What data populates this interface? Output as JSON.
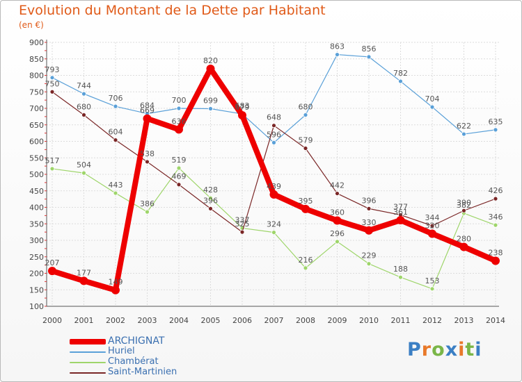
{
  "header": {
    "title": "Evolution du Montant de la Dette par Habitant",
    "unit": "(en €)"
  },
  "brand": {
    "text": "Proxiti"
  },
  "chart_data": {
    "type": "line",
    "title": "Evolution du Montant de la Dette par Habitant",
    "ylabel": "(en €)",
    "x": [
      "2000",
      "2001",
      "2002",
      "2003",
      "2004",
      "2005",
      "2006",
      "2007",
      "2008",
      "2009",
      "2010",
      "2011",
      "2012",
      "2013",
      "2014"
    ],
    "ylim": [
      100,
      900
    ],
    "yticks": [
      100,
      150,
      200,
      250,
      300,
      350,
      400,
      450,
      500,
      550,
      600,
      650,
      700,
      750,
      800,
      850,
      900
    ],
    "grid": true,
    "legend_position": "bottom-left",
    "series": [
      {
        "name": "Huriel",
        "color": "#5aa0d8",
        "values": [
          793,
          744,
          706,
          684,
          700,
          699,
          683,
          596,
          680,
          863,
          856,
          782,
          704,
          622,
          635
        ]
      },
      {
        "name": "Chambérat",
        "color": "#9ed56a",
        "values": [
          517,
          504,
          443,
          386,
          519,
          428,
          337,
          324,
          216,
          296,
          229,
          188,
          153,
          382,
          346
        ]
      },
      {
        "name": "Saint-Martinien",
        "color": "#7a2626",
        "values": [
          750,
          680,
          604,
          538,
          469,
          396,
          325,
          648,
          579,
          442,
          396,
          377,
          344,
          390,
          426
        ]
      },
      {
        "name": "ARCHIGNAT",
        "color": "#ee0000",
        "values": [
          207,
          177,
          149,
          669,
          636,
          820,
          679,
          439,
          395,
          360,
          330,
          361,
          320,
          280,
          238
        ]
      }
    ],
    "legend_order": [
      "ARCHIGNAT",
      "Huriel",
      "Chambérat",
      "Saint-Martinien"
    ]
  }
}
